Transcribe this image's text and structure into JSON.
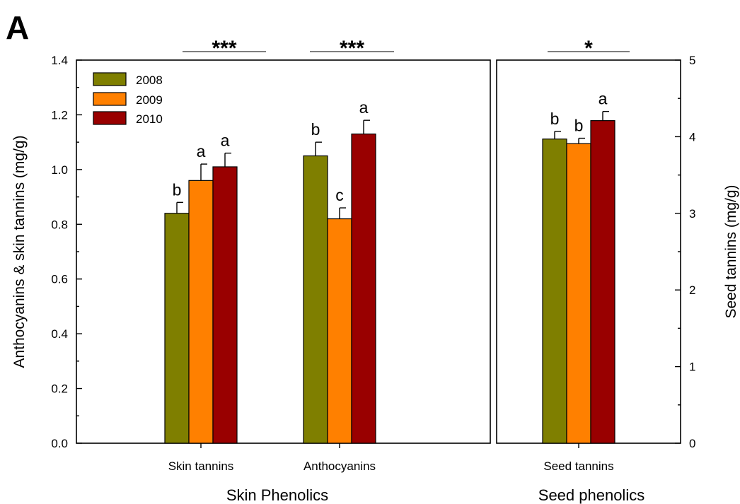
{
  "figure": {
    "panel_label": "A",
    "left_axis_title": "Anthocyanins & skin tannins (mg/g)",
    "right_axis_title": "Seed tannins (mg/g)",
    "left_group_title": "Skin Phenolics",
    "right_group_title": "Seed phenolics",
    "legend": [
      {
        "label": "2008",
        "color": "#7f7f00"
      },
      {
        "label": "2009",
        "color": "#ff8000"
      },
      {
        "label": "2010",
        "color": "#990000"
      }
    ]
  },
  "chart_data": [
    {
      "type": "bar",
      "panel": "left",
      "categories": [
        "Skin tannins",
        "Anthocyanins"
      ],
      "series": [
        {
          "name": "2008",
          "values": [
            0.84,
            1.05
          ],
          "errors": [
            0.04,
            0.05
          ],
          "letters": [
            "b",
            "b"
          ]
        },
        {
          "name": "2009",
          "values": [
            0.96,
            0.82
          ],
          "errors": [
            0.06,
            0.04
          ],
          "letters": [
            "a",
            "c"
          ]
        },
        {
          "name": "2010",
          "values": [
            1.01,
            1.13
          ],
          "errors": [
            0.05,
            0.05
          ],
          "letters": [
            "a",
            "a"
          ]
        }
      ],
      "significance": [
        "***",
        "***"
      ],
      "ylim": [
        0,
        1.4
      ],
      "yticks": [
        "0.0",
        "0.2",
        "0.4",
        "0.6",
        "0.8",
        "1.0",
        "1.2",
        "1.4"
      ],
      "ylabel": "Anthocyanins & skin tannins (mg/g)",
      "xlabel": "Skin Phenolics"
    },
    {
      "type": "bar",
      "panel": "right",
      "categories": [
        "Seed tannins"
      ],
      "series": [
        {
          "name": "2008",
          "values": [
            3.97
          ],
          "errors": [
            0.1
          ],
          "letters": [
            "b"
          ]
        },
        {
          "name": "2009",
          "values": [
            3.91
          ],
          "errors": [
            0.07
          ],
          "letters": [
            "b"
          ]
        },
        {
          "name": "2010",
          "values": [
            4.21
          ],
          "errors": [
            0.12
          ],
          "letters": [
            "a"
          ]
        }
      ],
      "significance": [
        "*"
      ],
      "ylim": [
        0,
        5
      ],
      "yticks": [
        "0",
        "1",
        "2",
        "3",
        "4",
        "5"
      ],
      "ylabel": "Seed tannins (mg/g)",
      "xlabel": "Seed phenolics"
    }
  ]
}
